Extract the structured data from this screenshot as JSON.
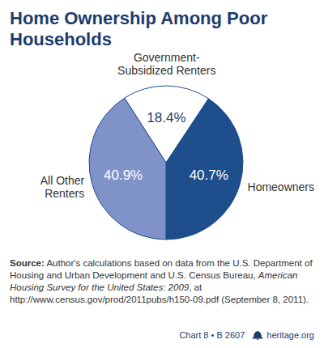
{
  "chart_data": {
    "type": "pie",
    "title": "Home Ownership Among Poor Households",
    "categories": [
      "Government-Subsidized Renters",
      "Homeowners",
      "All Other Renters"
    ],
    "values": [
      18.4,
      40.7,
      40.9
    ],
    "value_labels": [
      "18.4%",
      "40.7%",
      "40.9%"
    ],
    "data_labels": true,
    "colors": [
      "#ffffff",
      "#1f4e8c",
      "#7f93c8"
    ],
    "source": [
      "Source:",
      " Author's calculations based on data from the U.S. Department of Housing and Urban Development and U.S. Census Bureau, ",
      "American Housing Survey for the United States: 2009",
      ", at http://www.census.gov/prod/2011pubs/h150-09.pdf (September 8, 2011)."
    ],
    "footer": [
      "Chart 8 • B 2607",
      "heritage.org"
    ]
  }
}
